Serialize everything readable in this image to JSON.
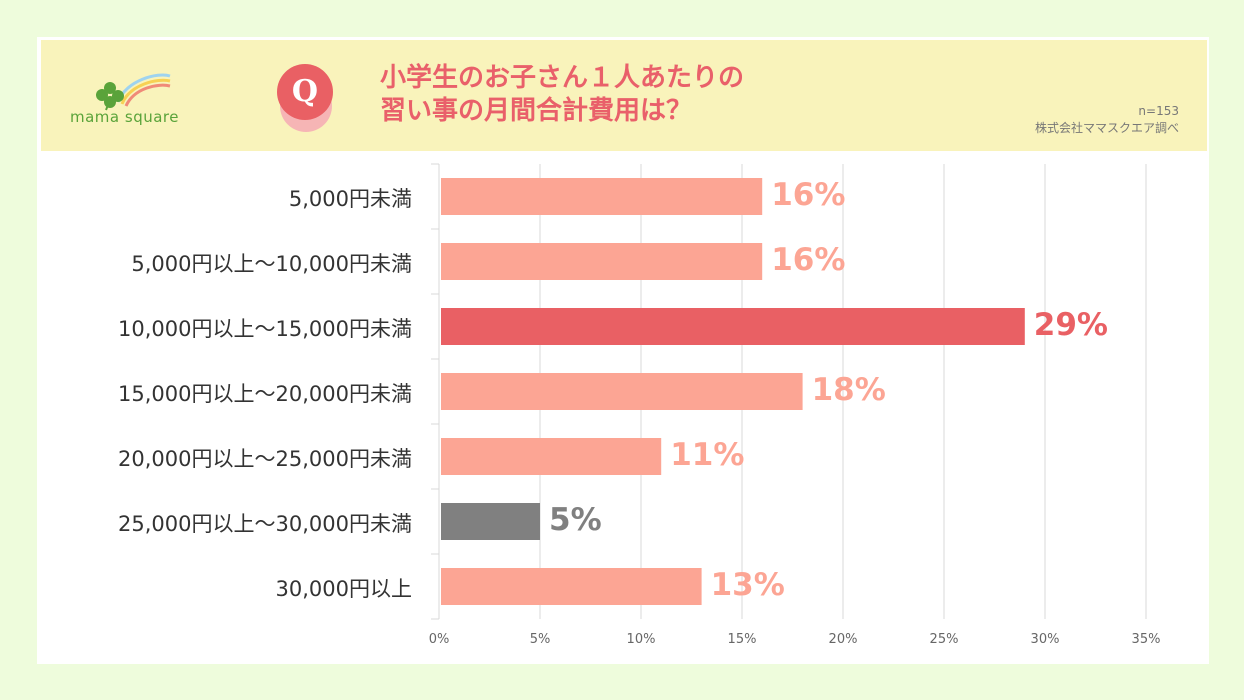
{
  "brand": {
    "logo_text": "mama square"
  },
  "header": {
    "q_letter": "Q",
    "title_line1": "小学生のお子さん１人あたりの",
    "title_line2": "習い事の月間合計費用は？",
    "sample_size": "n=153",
    "source": "株式会社ママスクエア調べ"
  },
  "colors": {
    "background": "#eefcdc",
    "header_bg": "#f9f3bb",
    "bar_default": "#fca594",
    "bar_highlight": "#e96064",
    "bar_gray": "#808080",
    "logo_green": "#5aa33a"
  },
  "chart_data": {
    "type": "bar",
    "orientation": "horizontal",
    "title": "小学生のお子さん１人あたりの習い事の月間合計費用は？",
    "categories": [
      "5,000円未満",
      "5,000円以上～10,000円未満",
      "10,000円以上～15,000円未満",
      "15,000円以上～20,000円未満",
      "20,000円以上～25,000円未満",
      "25,000円以上～30,000円未満",
      "30,000円以上"
    ],
    "values": [
      16,
      16,
      29,
      18,
      11,
      5,
      13
    ],
    "value_labels": [
      "16%",
      "16%",
      "29%",
      "18%",
      "11%",
      "5%",
      "13%"
    ],
    "bar_colors": [
      "#fca594",
      "#fca594",
      "#e96064",
      "#fca594",
      "#fca594",
      "#808080",
      "#fca594"
    ],
    "xlim": [
      0,
      35
    ],
    "ticks": [
      0,
      5,
      10,
      15,
      20,
      25,
      30,
      35
    ],
    "tick_labels": [
      "0%",
      "5%",
      "10%",
      "15%",
      "20%",
      "25%",
      "30%",
      "35%"
    ],
    "grid": true
  }
}
